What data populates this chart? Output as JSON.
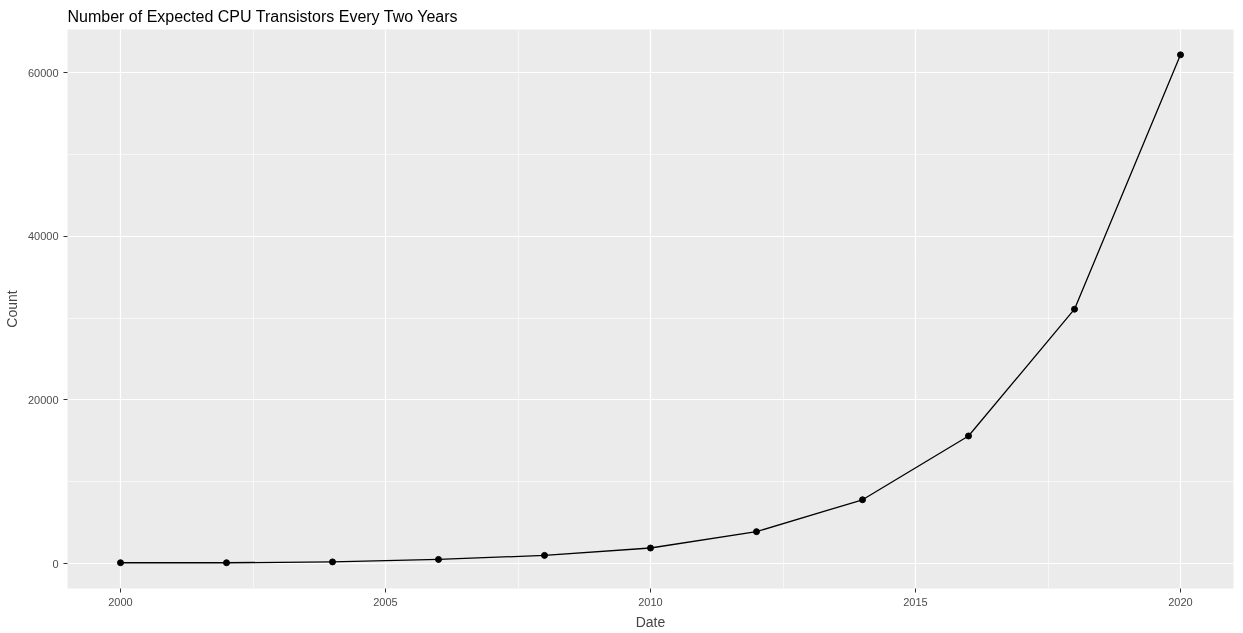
{
  "chart_data": {
    "type": "line",
    "title": "Number of Expected CPU Transistors Every Two Years",
    "xlabel": "Date",
    "ylabel": "Count",
    "x": [
      2000,
      2002,
      2004,
      2006,
      2008,
      2010,
      2012,
      2014,
      2016,
      2018,
      2020
    ],
    "series": [
      {
        "color": "#000000",
        "values": [
          100,
          100,
          200,
          500,
          1000,
          1900,
          3900,
          7800,
          15600,
          31100,
          62200
        ]
      }
    ],
    "xlim": [
      1999,
      2021
    ],
    "ylim": [
      -3050,
      65300
    ],
    "xticks": [
      2000,
      2005,
      2010,
      2015,
      2020
    ],
    "yticks": [
      0,
      20000,
      40000,
      60000
    ],
    "grid": true,
    "marker": "circle",
    "line_style": "solid"
  }
}
